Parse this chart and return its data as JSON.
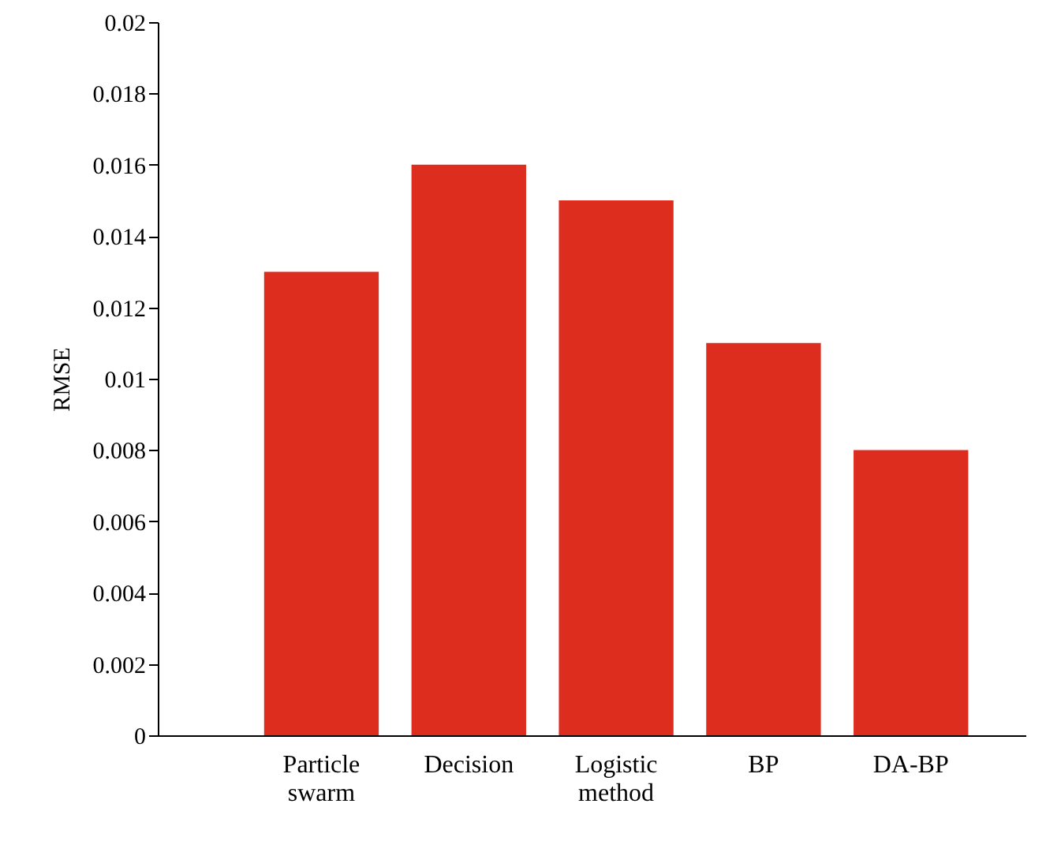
{
  "chart_data": {
    "type": "bar",
    "ylabel": "RMSE",
    "categories": [
      "Particle swarm",
      "Decision",
      "Logistic method",
      "BP",
      "DA-BP"
    ],
    "values": [
      0.013,
      0.016,
      0.015,
      0.011,
      0.008
    ],
    "color": "#dc2d1e",
    "ylim": [
      0,
      0.02
    ],
    "yticks": [
      0,
      0.002,
      0.004,
      0.006,
      0.008,
      0.01,
      0.012,
      0.014,
      0.016,
      0.018,
      0.02
    ],
    "grid": false
  }
}
